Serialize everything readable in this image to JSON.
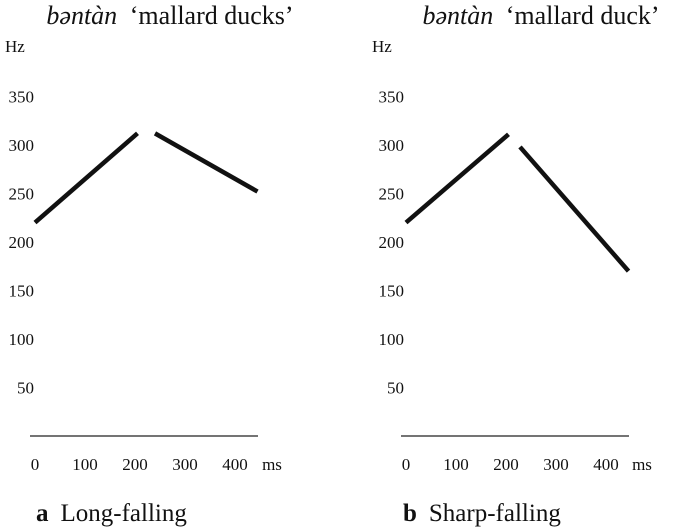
{
  "chart_data": [
    {
      "type": "line",
      "title_word": "bəntàn",
      "title_gloss": "‘mallard ducks’",
      "ylabel": "Hz",
      "xunit": "ms",
      "x_ticks": [
        0,
        100,
        200,
        300,
        400
      ],
      "y_ticks": [
        50,
        100,
        150,
        200,
        250,
        300,
        350
      ],
      "xlim": [
        0,
        500
      ],
      "ylim": [
        0,
        380
      ],
      "grid": false,
      "segments": [
        {
          "points": [
            {
              "x": 0,
              "y": 220
            },
            {
              "x": 205,
              "y": 312
            }
          ]
        },
        {
          "points": [
            {
              "x": 240,
              "y": 312
            },
            {
              "x": 445,
              "y": 252
            }
          ]
        }
      ],
      "panel_label": "a",
      "caption": "Long-falling"
    },
    {
      "type": "line",
      "title_word": "bəntàn",
      "title_gloss": "‘mallard duck’",
      "ylabel": "Hz",
      "xunit": "ms",
      "x_ticks": [
        0,
        100,
        200,
        300,
        400
      ],
      "y_ticks": [
        50,
        100,
        150,
        200,
        250,
        300,
        350
      ],
      "xlim": [
        0,
        500
      ],
      "ylim": [
        0,
        380
      ],
      "grid": false,
      "segments": [
        {
          "points": [
            {
              "x": 0,
              "y": 220
            },
            {
              "x": 205,
              "y": 311
            }
          ]
        },
        {
          "points": [
            {
              "x": 228,
              "y": 298
            },
            {
              "x": 445,
              "y": 170
            }
          ]
        }
      ],
      "panel_label": "b",
      "caption": "Sharp-falling"
    }
  ]
}
